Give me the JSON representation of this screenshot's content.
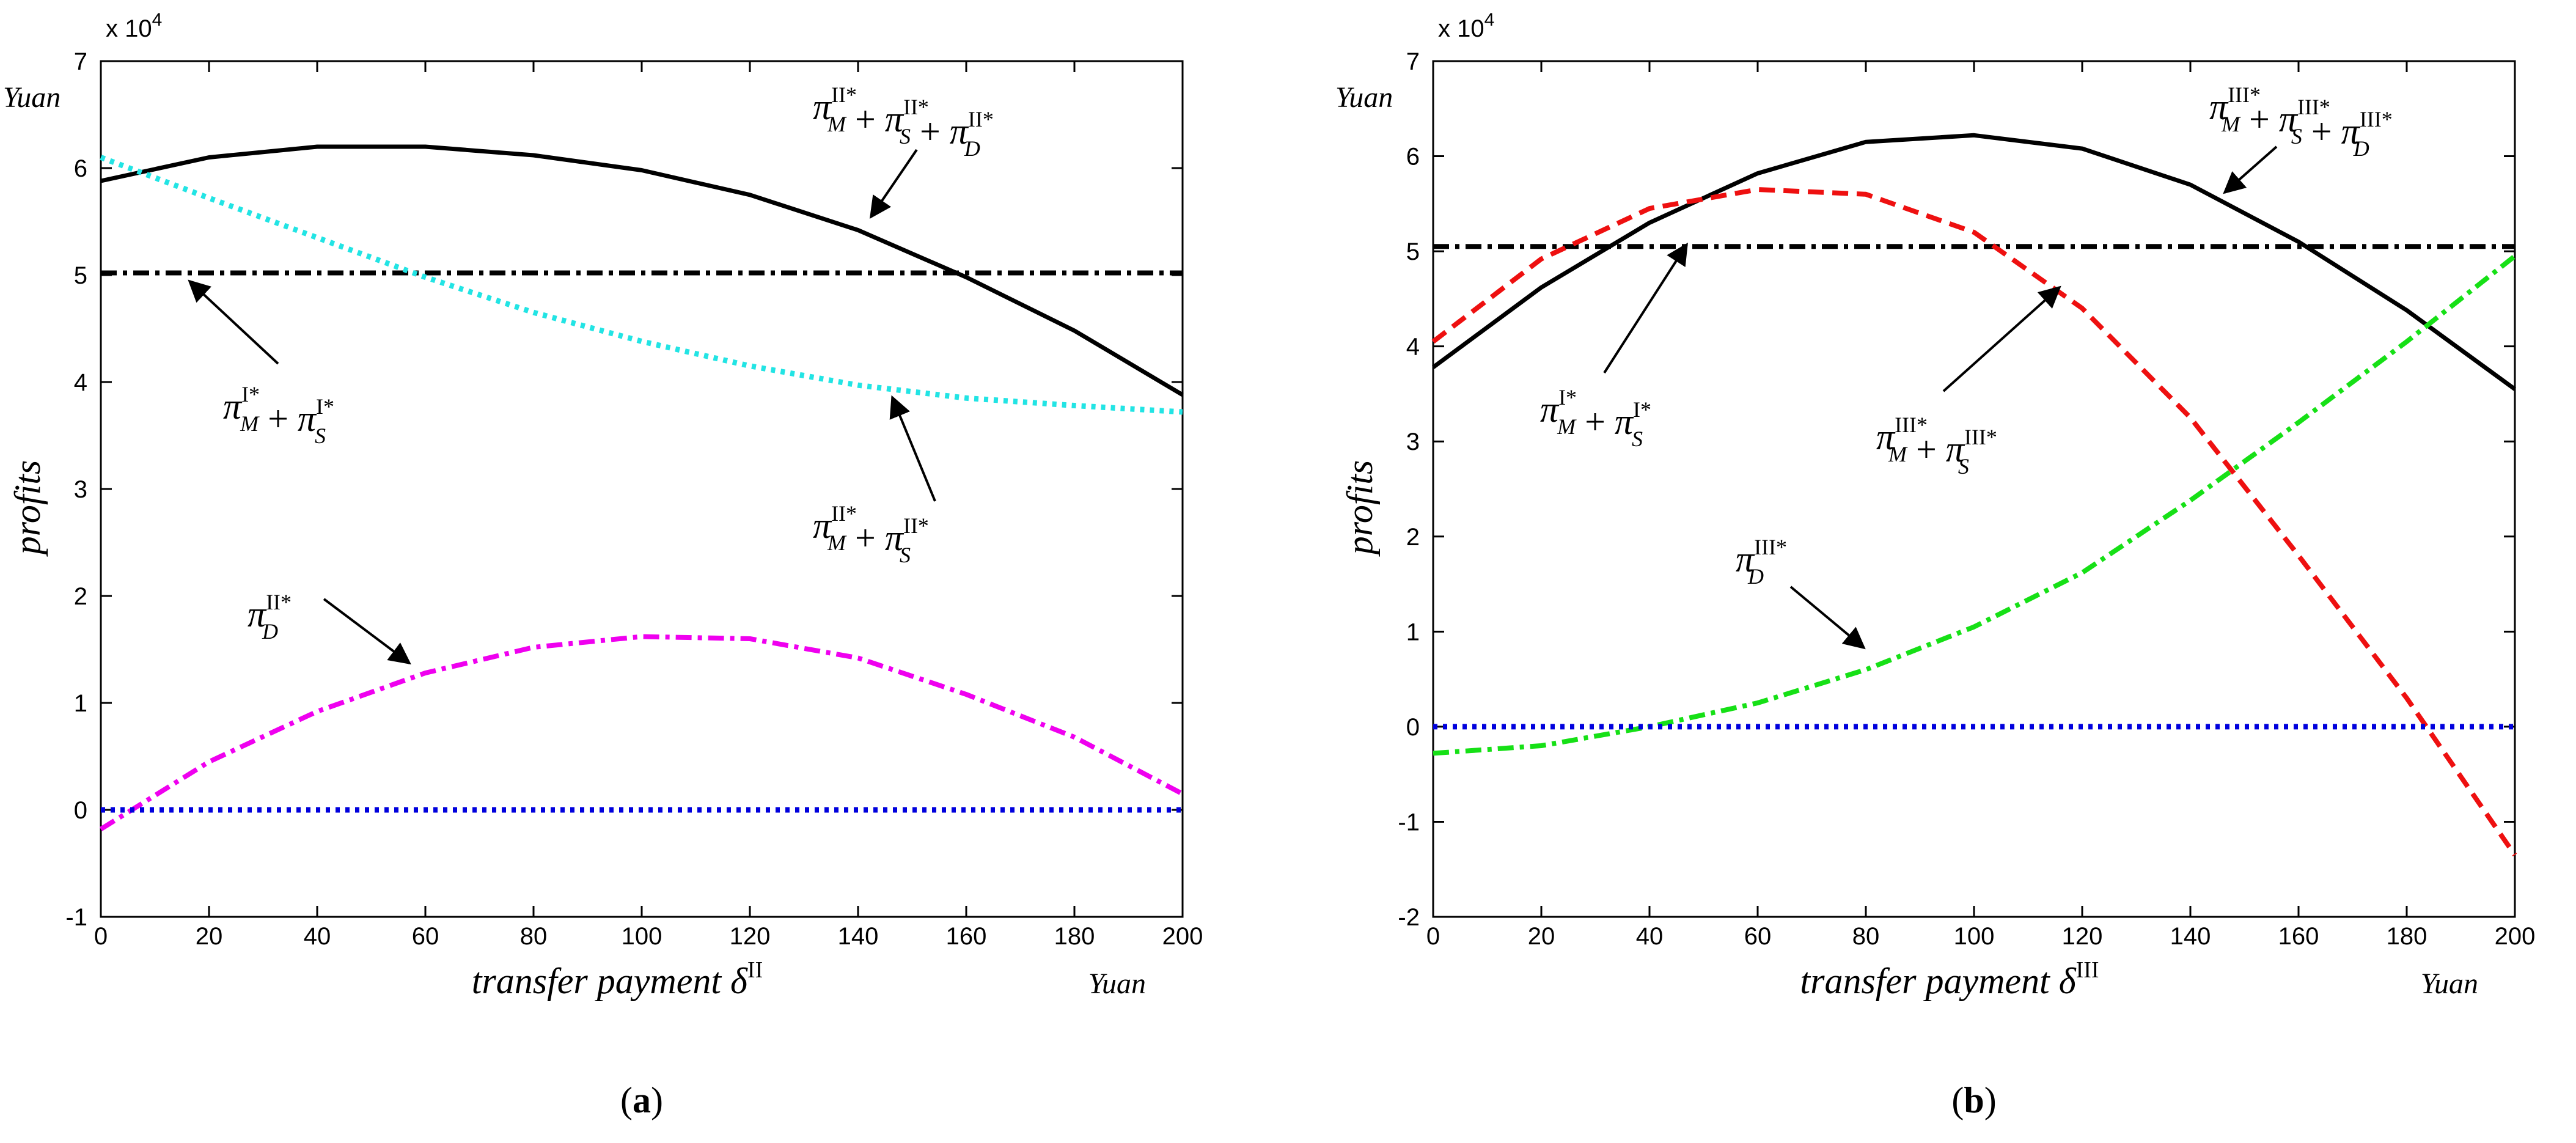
{
  "chart_data": [
    {
      "panel_label": "a",
      "type": "line",
      "x_axis_label": "transfer payment",
      "x_axis_symbol": "δ",
      "x_axis_symbol_sup": "II",
      "x_unit": "Yuan",
      "y_axis_label": "profits",
      "y_unit": "Yuan",
      "y_multiplier": "x 10",
      "y_multiplier_exp": "4",
      "xlim": [
        0,
        200
      ],
      "ylim": [
        -1,
        7
      ],
      "x_ticks": [
        "0",
        "20",
        "40",
        "60",
        "80",
        "100",
        "120",
        "140",
        "160",
        "180",
        "200"
      ],
      "y_ticks": [
        "-1",
        "0",
        "1",
        "2",
        "3",
        "4",
        "5",
        "6",
        "7"
      ],
      "series": [
        {
          "name": "total-II",
          "color": "#000000",
          "style": "solid",
          "label": {
            "base": [
              "π",
              "π",
              "π"
            ],
            "subs": [
              "M",
              "S",
              "D"
            ],
            "sup": "II*",
            "op": "+"
          },
          "x": [
            0,
            20,
            40,
            60,
            80,
            100,
            120,
            140,
            160,
            180,
            200
          ],
          "y": [
            5.88,
            6.1,
            6.2,
            6.2,
            6.12,
            5.98,
            5.75,
            5.42,
            4.98,
            4.48,
            3.88
          ]
        },
        {
          "name": "baseline-I",
          "color": "#000000",
          "style": "dashdot",
          "label": {
            "base": [
              "π",
              "π"
            ],
            "subs": [
              "M",
              "S"
            ],
            "sup": "I*",
            "op": "+"
          },
          "x": [
            0,
            200
          ],
          "y": [
            5.02,
            5.02
          ]
        },
        {
          "name": "ms-II",
          "color": "#22e4e4",
          "style": "dotted",
          "label": {
            "base": [
              "π",
              "π"
            ],
            "subs": [
              "M",
              "S"
            ],
            "sup": "II*",
            "op": "+"
          },
          "x": [
            0,
            20,
            40,
            60,
            80,
            100,
            120,
            140,
            160,
            180,
            200
          ],
          "y": [
            6.1,
            5.72,
            5.35,
            4.98,
            4.65,
            4.38,
            4.15,
            3.97,
            3.85,
            3.78,
            3.72
          ]
        },
        {
          "name": "d-II",
          "color": "#ef00ef",
          "style": "dashdot",
          "label": {
            "base": [
              "π"
            ],
            "subs": [
              "D"
            ],
            "sup": "II*",
            "op": "+"
          },
          "x": [
            0,
            20,
            40,
            60,
            80,
            100,
            120,
            140,
            160,
            180,
            200
          ],
          "y": [
            -0.18,
            0.45,
            0.92,
            1.28,
            1.52,
            1.62,
            1.6,
            1.42,
            1.08,
            0.68,
            0.15
          ]
        },
        {
          "name": "zero",
          "color": "#0000dd",
          "style": "dotted",
          "label": null,
          "x": [
            0,
            200
          ],
          "y": [
            0.0,
            0.0
          ]
        }
      ]
    },
    {
      "panel_label": "b",
      "type": "line",
      "x_axis_label": "transfer payment",
      "x_axis_symbol": "δ",
      "x_axis_symbol_sup": "III",
      "x_unit": "Yuan",
      "y_axis_label": "profits",
      "y_unit": "Yuan",
      "y_multiplier": "x 10",
      "y_multiplier_exp": "4",
      "xlim": [
        0,
        200
      ],
      "ylim": [
        -2,
        7
      ],
      "x_ticks": [
        "0",
        "20",
        "40",
        "60",
        "80",
        "100",
        "120",
        "140",
        "160",
        "180",
        "200"
      ],
      "y_ticks": [
        "-2",
        "-1",
        "0",
        "1",
        "2",
        "3",
        "4",
        "5",
        "6",
        "7"
      ],
      "series": [
        {
          "name": "total-III",
          "color": "#000000",
          "style": "solid",
          "label": {
            "base": [
              "π",
              "π",
              "π"
            ],
            "subs": [
              "M",
              "S",
              "D"
            ],
            "sup": "III*",
            "op": "+"
          },
          "x": [
            0,
            20,
            40,
            60,
            80,
            100,
            120,
            140,
            160,
            180,
            200
          ],
          "y": [
            3.78,
            4.62,
            5.3,
            5.82,
            6.15,
            6.22,
            6.08,
            5.7,
            5.1,
            4.38,
            3.55
          ]
        },
        {
          "name": "baseline-I",
          "color": "#000000",
          "style": "dashdot",
          "label": {
            "base": [
              "π",
              "π"
            ],
            "subs": [
              "M",
              "S"
            ],
            "sup": "I*",
            "op": "+"
          },
          "x": [
            0,
            200
          ],
          "y": [
            5.05,
            5.05
          ]
        },
        {
          "name": "ms-III",
          "color": "#ee1010",
          "style": "dashed",
          "label": {
            "base": [
              "π",
              "π"
            ],
            "subs": [
              "M",
              "S"
            ],
            "sup": "III*",
            "op": "+"
          },
          "x": [
            0,
            20,
            40,
            60,
            80,
            100,
            120,
            140,
            160,
            180,
            200
          ],
          "y": [
            4.05,
            4.92,
            5.45,
            5.65,
            5.6,
            5.2,
            4.4,
            3.25,
            1.8,
            0.3,
            -1.35
          ]
        },
        {
          "name": "d-III",
          "color": "#16e016",
          "style": "dashdot",
          "label": {
            "base": [
              "π"
            ],
            "subs": [
              "D"
            ],
            "sup": "III*",
            "op": "+"
          },
          "x": [
            0,
            20,
            40,
            60,
            80,
            100,
            120,
            140,
            160,
            180,
            200
          ],
          "y": [
            -0.28,
            -0.2,
            0.0,
            0.25,
            0.6,
            1.05,
            1.62,
            2.38,
            3.2,
            4.05,
            4.95
          ]
        },
        {
          "name": "zero",
          "color": "#0000dd",
          "style": "dotted",
          "label": null,
          "x": [
            0,
            200
          ],
          "y": [
            0.0,
            0.0
          ]
        }
      ]
    }
  ]
}
